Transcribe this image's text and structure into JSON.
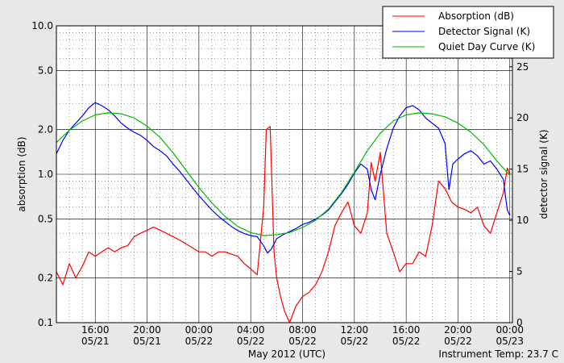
{
  "chart_data": {
    "type": "line",
    "xlabel": "May 2012 (UTC)",
    "ylabel": "absorption (dB)",
    "ylabel_right": "detector signal (K)",
    "instrument_temp_label": "Instrument Temp: 23.7 C",
    "x_ticks": [
      {
        "hour": 16,
        "line1": "16:00",
        "line2": "05/21"
      },
      {
        "hour": 20,
        "line1": "20:00",
        "line2": "05/21"
      },
      {
        "hour": 24,
        "line1": "00:00",
        "line2": "05/22"
      },
      {
        "hour": 28,
        "line1": "04:00",
        "line2": "05/22"
      },
      {
        "hour": 32,
        "line1": "08:00",
        "line2": "05/22"
      },
      {
        "hour": 36,
        "line1": "12:00",
        "line2": "05/22"
      },
      {
        "hour": 40,
        "line1": "16:00",
        "line2": "05/22"
      },
      {
        "hour": 44,
        "line1": "20:00",
        "line2": "05/22"
      },
      {
        "hour": 48,
        "line1": "00:00",
        "line2": "05/23"
      }
    ],
    "x_range_hours": [
      13,
      48.2
    ],
    "y_left": {
      "scale": "log",
      "range": [
        0.1,
        10.0
      ],
      "ticks": [
        {
          "v": 0.1,
          "label": "0.1"
        },
        {
          "v": 0.2,
          "label": "0.2"
        },
        {
          "v": 0.5,
          "label": "0.5"
        },
        {
          "v": 1.0,
          "label": "1.0"
        },
        {
          "v": 2.0,
          "label": "2.0"
        },
        {
          "v": 5.0,
          "label": "5.0"
        },
        {
          "v": 10.0,
          "label": "10.0"
        }
      ]
    },
    "y_right": {
      "scale": "linear",
      "range": [
        0,
        29
      ],
      "ticks": [
        {
          "v": 0,
          "label": "0"
        },
        {
          "v": 5,
          "label": "5"
        },
        {
          "v": 10,
          "label": "10"
        },
        {
          "v": 15,
          "label": "15"
        },
        {
          "v": 20,
          "label": "20"
        },
        {
          "v": 25,
          "label": "25"
        }
      ]
    },
    "grid": true,
    "legend_position": "top-right",
    "series": [
      {
        "name": "Absorption (dB)",
        "color": "#ff0000",
        "axis": "left",
        "x": [
          13.0,
          13.5,
          14.0,
          14.5,
          15.0,
          15.5,
          16.0,
          16.5,
          17.0,
          17.5,
          18.0,
          18.5,
          19.0,
          19.5,
          20.0,
          20.5,
          21.0,
          21.5,
          22.0,
          22.5,
          23.0,
          23.5,
          24.0,
          24.5,
          25.0,
          25.5,
          26.0,
          26.5,
          27.0,
          27.5,
          28.0,
          28.5,
          29.0,
          29.2,
          29.5,
          29.8,
          30.0,
          30.3,
          30.6,
          31.0,
          31.5,
          32.0,
          32.5,
          33.0,
          33.5,
          34.0,
          34.5,
          35.0,
          35.5,
          36.0,
          36.5,
          37.0,
          37.3,
          37.6,
          38.0,
          38.5,
          39.0,
          39.5,
          40.0,
          40.5,
          41.0,
          41.5,
          42.0,
          42.5,
          43.0,
          43.5,
          44.0,
          44.5,
          45.0,
          45.5,
          46.0,
          46.5,
          47.0,
          47.5,
          47.8,
          48.0
        ],
        "y": [
          0.22,
          0.18,
          0.25,
          0.2,
          0.24,
          0.3,
          0.28,
          0.3,
          0.32,
          0.3,
          0.32,
          0.33,
          0.38,
          0.4,
          0.42,
          0.44,
          0.42,
          0.4,
          0.38,
          0.36,
          0.34,
          0.32,
          0.3,
          0.3,
          0.28,
          0.3,
          0.3,
          0.29,
          0.28,
          0.25,
          0.23,
          0.21,
          0.6,
          2.0,
          2.1,
          0.3,
          0.2,
          0.15,
          0.12,
          0.1,
          0.13,
          0.15,
          0.16,
          0.18,
          0.22,
          0.3,
          0.45,
          0.55,
          0.65,
          0.45,
          0.4,
          0.55,
          1.2,
          0.9,
          1.4,
          0.4,
          0.3,
          0.22,
          0.25,
          0.25,
          0.3,
          0.28,
          0.45,
          0.9,
          0.8,
          0.65,
          0.6,
          0.58,
          0.55,
          0.6,
          0.45,
          0.4,
          0.55,
          0.75,
          1.1,
          1.0
        ]
      },
      {
        "name": "Detector Signal (K)",
        "color": "#0000ff",
        "axis": "right",
        "x": [
          13.0,
          13.5,
          14.0,
          14.5,
          15.0,
          15.5,
          16.0,
          16.5,
          17.0,
          17.5,
          18.0,
          18.5,
          19.0,
          19.5,
          20.0,
          20.5,
          21.0,
          21.5,
          22.0,
          22.5,
          23.0,
          23.5,
          24.0,
          24.5,
          25.0,
          25.5,
          26.0,
          26.5,
          27.0,
          27.5,
          28.0,
          28.5,
          29.0,
          29.3,
          29.6,
          30.0,
          30.5,
          31.0,
          31.5,
          32.0,
          32.5,
          33.0,
          33.5,
          34.0,
          34.5,
          35.0,
          35.5,
          36.0,
          36.5,
          37.0,
          37.3,
          37.6,
          38.0,
          38.5,
          39.0,
          39.5,
          40.0,
          40.5,
          41.0,
          41.5,
          42.0,
          42.5,
          43.0,
          43.3,
          43.6,
          44.0,
          44.5,
          45.0,
          45.5,
          46.0,
          46.5,
          47.0,
          47.5,
          47.8,
          48.0
        ],
        "y": [
          16.5,
          17.8,
          18.8,
          19.5,
          20.2,
          21.0,
          21.5,
          21.2,
          20.8,
          20.2,
          19.5,
          19.0,
          18.6,
          18.3,
          17.8,
          17.2,
          16.8,
          16.3,
          15.5,
          14.8,
          14.0,
          13.2,
          12.4,
          11.7,
          11.0,
          10.4,
          9.9,
          9.4,
          9.0,
          8.7,
          8.5,
          8.4,
          7.5,
          6.8,
          7.2,
          8.2,
          8.6,
          8.9,
          9.2,
          9.6,
          9.8,
          10.1,
          10.5,
          11.0,
          11.8,
          12.6,
          13.5,
          14.6,
          15.5,
          15.0,
          13.0,
          12.0,
          14.5,
          17.0,
          19.0,
          20.2,
          21.0,
          21.2,
          20.8,
          20.0,
          19.5,
          19.0,
          17.5,
          13.0,
          15.5,
          16.0,
          16.5,
          16.8,
          16.3,
          15.5,
          15.8,
          15.0,
          14.0,
          11.0,
          10.5
        ]
      },
      {
        "name": "Quiet Day Curve (K)",
        "color": "#00bb00",
        "axis": "right",
        "x": [
          13,
          14,
          15,
          16,
          17,
          18,
          19,
          20,
          21,
          22,
          23,
          24,
          25,
          26,
          27,
          28,
          29,
          30,
          31,
          32,
          33,
          34,
          35,
          36,
          37,
          38,
          39,
          40,
          41,
          42,
          43,
          44,
          45,
          46,
          47,
          48
        ],
        "y": [
          17.6,
          18.8,
          19.7,
          20.3,
          20.5,
          20.4,
          20.0,
          19.2,
          18.1,
          16.6,
          14.9,
          13.2,
          11.7,
          10.4,
          9.4,
          8.8,
          8.5,
          8.6,
          8.8,
          9.3,
          10.0,
          11.1,
          12.7,
          14.7,
          16.8,
          18.5,
          19.7,
          20.3,
          20.5,
          20.4,
          20.1,
          19.5,
          18.6,
          17.4,
          15.8,
          14.4
        ]
      }
    ]
  }
}
